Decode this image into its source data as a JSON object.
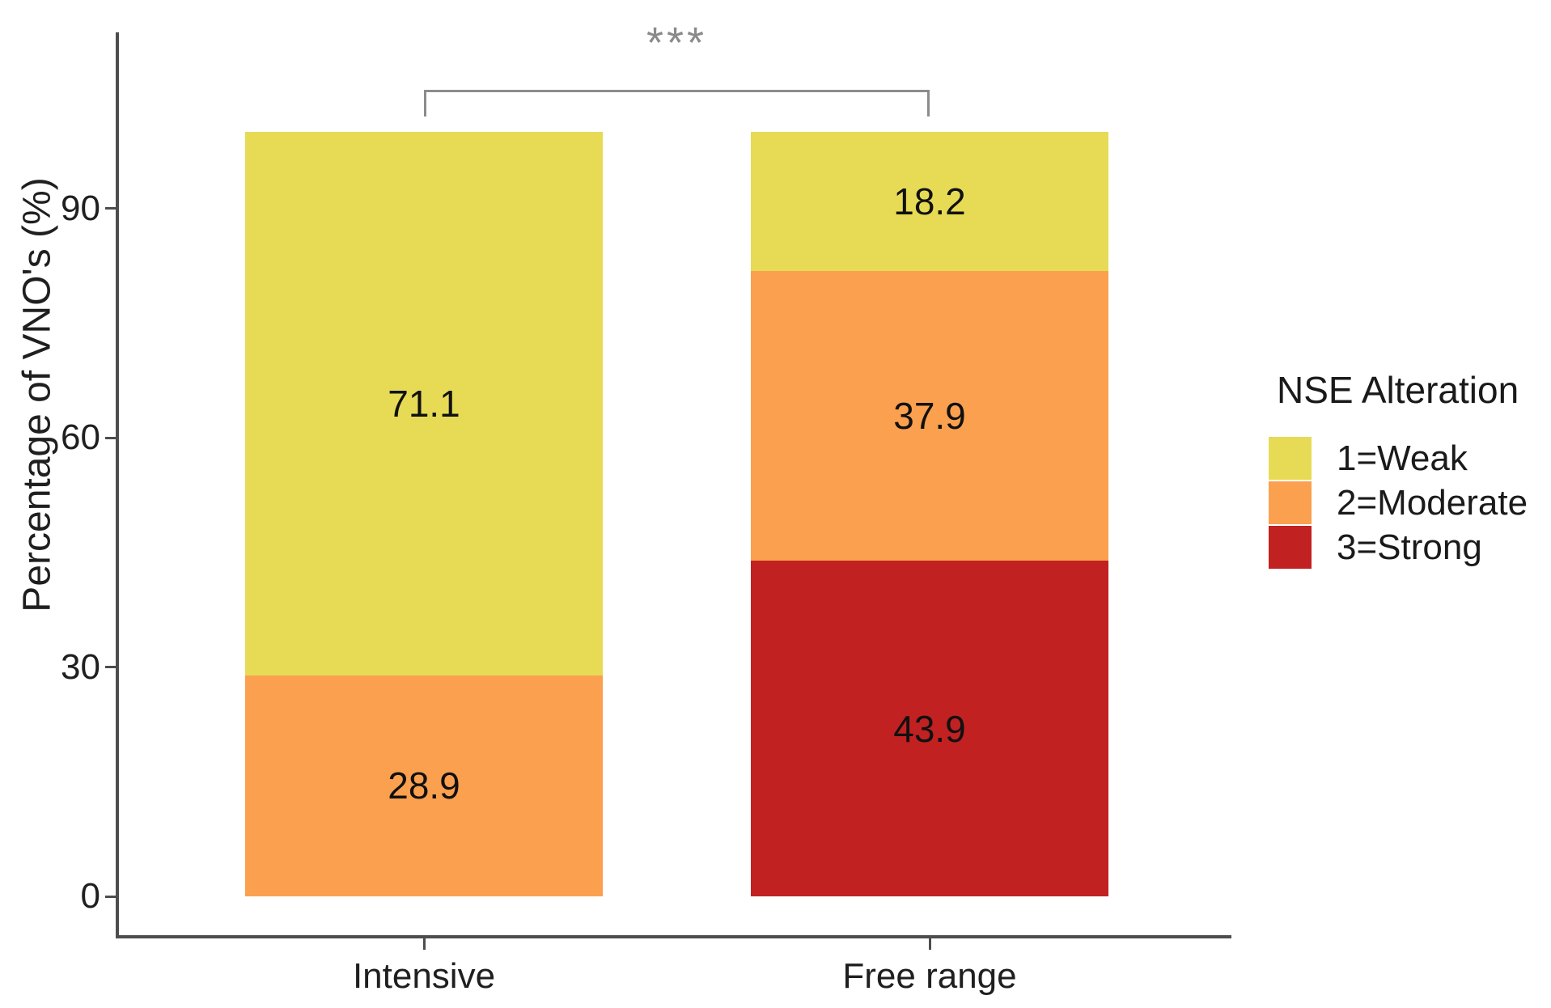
{
  "axes": {
    "y_title": "Percentage of VNO's (%)",
    "y_tick_labels": [
      "0",
      "30",
      "60",
      "90"
    ],
    "x_categories": [
      "Intensive",
      "Free range"
    ]
  },
  "legend": {
    "title": "NSE Alteration",
    "items": [
      {
        "label": "1=Weak",
        "color": "#E7DB55"
      },
      {
        "label": "2=Moderate",
        "color": "#FBA04F"
      },
      {
        "label": "3=Strong",
        "color": "#C22121"
      }
    ]
  },
  "annotation": {
    "significance_label": "***"
  },
  "chart_data": {
    "type": "bar",
    "stacked": true,
    "title": "",
    "xlabel": "",
    "ylabel": "Percentage of VNO's (%)",
    "categories": [
      "Intensive",
      "Free range"
    ],
    "series": [
      {
        "name": "1=Weak",
        "color": "#E7DB55",
        "values": [
          71.1,
          18.2
        ]
      },
      {
        "name": "2=Moderate",
        "color": "#FBA04F",
        "values": [
          28.9,
          37.9
        ]
      },
      {
        "name": "3=Strong",
        "color": "#C22121",
        "values": [
          0,
          43.9
        ]
      }
    ],
    "value_labels": {
      "Intensive": {
        "1=Weak": 71.1,
        "2=Moderate": 28.9
      },
      "Free range": {
        "1=Weak": 18.2,
        "2=Moderate": 37.9,
        "3=Strong": 43.9
      }
    },
    "ylim": [
      0,
      100
    ],
    "y_ticks": [
      0,
      30,
      60,
      90
    ],
    "grid": false,
    "legend_title": "NSE Alteration",
    "legend_position": "right",
    "annotations": [
      {
        "text": "***",
        "type": "significance-bracket",
        "from": "Intensive",
        "to": "Free range"
      }
    ]
  }
}
